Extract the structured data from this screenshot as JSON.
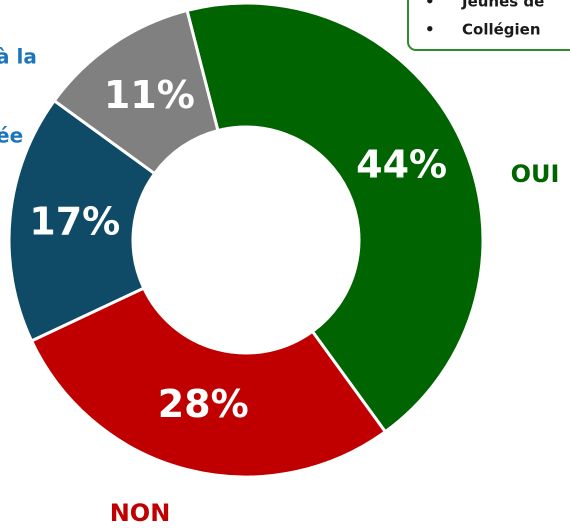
{
  "chart_data": {
    "type": "donut",
    "categories": [
      "OUI",
      "NON",
      null,
      null
    ],
    "values": [
      44,
      28,
      17,
      11
    ],
    "value_labels": [
      "44%",
      "28%",
      "17%",
      "11%"
    ],
    "colors": [
      "#006400",
      "#c00000",
      "#0f4a66",
      "#808080"
    ],
    "annotations": [
      "à la",
      "ée"
    ],
    "legend_box": [
      "Jeunes de",
      "Collégien"
    ]
  }
}
